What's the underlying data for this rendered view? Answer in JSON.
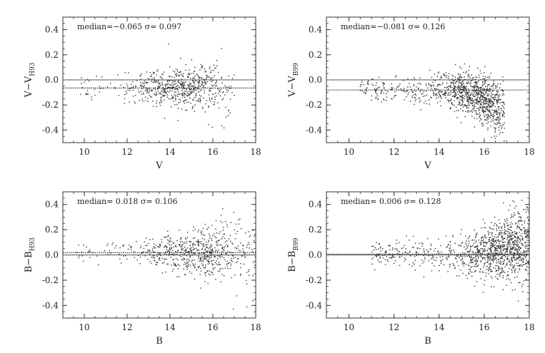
{
  "chart_data": [
    {
      "type": "scatter",
      "ylabel": "V−V",
      "ylabel_sub": "H93",
      "xlabel": "V",
      "xlim": [
        9,
        18
      ],
      "ylim": [
        -0.5,
        0.5
      ],
      "xticks": [
        "10",
        "12",
        "14",
        "16",
        "18"
      ],
      "yticks": [
        "-0.4",
        "-0.2",
        "0.0",
        "0.2",
        "0.4"
      ],
      "annotation": "median=−0.065   σ= 0.097",
      "median": -0.065,
      "sigma": 0.097,
      "zero_line": 0.0,
      "distribution": {
        "x_min": 9.7,
        "x_max": 17.0,
        "x_peak": 14.6,
        "center": -0.065,
        "sigma_bright": 0.05,
        "sigma_faint": 0.12
      },
      "n_points": 650
    },
    {
      "type": "scatter",
      "ylabel": "V−V",
      "ylabel_sub": "B99",
      "xlabel": "V",
      "xlim": [
        9,
        18
      ],
      "ylim": [
        -0.5,
        0.5
      ],
      "xticks": [
        "10",
        "12",
        "14",
        "16",
        "18"
      ],
      "yticks": [
        "-0.4",
        "-0.2",
        "0.0",
        "0.2",
        "0.4"
      ],
      "annotation": "median=−0.081   σ= 0.126",
      "median": -0.081,
      "sigma": 0.126,
      "zero_line": 0.0,
      "distribution": {
        "x_min": 10.5,
        "x_max": 16.9,
        "x_peak": 15.8,
        "center": -0.081,
        "sigma_bright": 0.05,
        "sigma_faint": 0.12,
        "faint_trend": -0.15
      },
      "n_points": 1100
    },
    {
      "type": "scatter",
      "ylabel": "B−B",
      "ylabel_sub": "H93",
      "xlabel": "B",
      "xlim": [
        9,
        18
      ],
      "ylim": [
        -0.5,
        0.5
      ],
      "xticks": [
        "10",
        "12",
        "14",
        "16",
        "18"
      ],
      "yticks": [
        "-0.4",
        "-0.2",
        "0.0",
        "0.2",
        "0.4"
      ],
      "annotation": "median= 0.018   σ= 0.106",
      "median": 0.018,
      "sigma": 0.106,
      "zero_line": 0.0,
      "distribution": {
        "x_min": 9.6,
        "x_max": 18.0,
        "x_peak": 15.3,
        "center": 0.018,
        "sigma_bright": 0.05,
        "sigma_faint": 0.15
      },
      "n_points": 700
    },
    {
      "type": "scatter",
      "ylabel": "B−B",
      "ylabel_sub": "B99",
      "xlabel": "B",
      "xlim": [
        9,
        18
      ],
      "ylim": [
        -0.5,
        0.5
      ],
      "xticks": [
        "10",
        "12",
        "14",
        "16",
        "18"
      ],
      "yticks": [
        "-0.4",
        "-0.2",
        "0.0",
        "0.2",
        "0.4"
      ],
      "annotation": "median= 0.006   σ= 0.128",
      "median": 0.006,
      "sigma": 0.128,
      "zero_line": 0.0,
      "distribution": {
        "x_min": 11.0,
        "x_max": 18.0,
        "x_peak": 17.0,
        "center": 0.006,
        "sigma_bright": 0.05,
        "sigma_faint": 0.15,
        "faint_trend": 0.1
      },
      "n_points": 1200
    }
  ]
}
